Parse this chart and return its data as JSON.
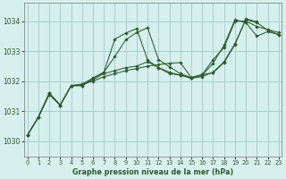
{
  "xlabel": "Graphe pression niveau de la mer (hPa)",
  "bg_color": "#d6f0ee",
  "grid_color": "#a0ccc8",
  "line_color": "#2d5a2d",
  "marker_color": "#2d5a2d",
  "ylim": [
    1029.5,
    1034.6
  ],
  "xlim": [
    -0.3,
    23.3
  ],
  "yticks": [
    1030,
    1031,
    1032,
    1033,
    1034
  ],
  "xticks": [
    0,
    1,
    2,
    3,
    4,
    5,
    6,
    7,
    8,
    9,
    10,
    11,
    12,
    13,
    14,
    15,
    16,
    17,
    18,
    19,
    20,
    21,
    22,
    23
  ],
  "series": [
    {
      "x": [
        0,
        1,
        2,
        3,
        4,
        5,
        6,
        7,
        8,
        9,
        10,
        11,
        12,
        13,
        14,
        15,
        16,
        17,
        18,
        19,
        20,
        21,
        22,
        23
      ],
      "y": [
        1030.2,
        1030.8,
        1031.55,
        1031.2,
        1031.85,
        1031.85,
        1032.1,
        1032.3,
        1033.4,
        1033.6,
        1033.75,
        1032.7,
        1032.45,
        1032.25,
        1032.2,
        1032.1,
        1032.2,
        1032.6,
        1033.2,
        1034.05,
        1033.95,
        1033.5,
        1033.65,
        1033.55
      ]
    },
    {
      "x": [
        0,
        1,
        2,
        3,
        4,
        5,
        6,
        7,
        8,
        9,
        10,
        11,
        12,
        13,
        14,
        15,
        16,
        17,
        18,
        19,
        20,
        21,
        22,
        23
      ],
      "y": [
        1030.2,
        1030.8,
        1031.6,
        1031.2,
        1031.85,
        1031.85,
        1032.05,
        1032.25,
        1032.35,
        1032.45,
        1032.5,
        1032.65,
        1032.45,
        1032.3,
        1032.2,
        1032.1,
        1032.15,
        1032.3,
        1032.65,
        1033.25,
        1034.05,
        1033.95,
        1033.7,
        1033.55
      ]
    },
    {
      "x": [
        0,
        1,
        2,
        3,
        4,
        5,
        6,
        7,
        8,
        9,
        10,
        11,
        12,
        13,
        14,
        15,
        16,
        17,
        18,
        19,
        20,
        21,
        22,
        23
      ],
      "y": [
        1030.2,
        1030.8,
        1031.6,
        1031.2,
        1031.85,
        1031.9,
        1032.0,
        1032.15,
        1032.25,
        1032.35,
        1032.42,
        1032.5,
        1032.55,
        1032.6,
        1032.62,
        1032.12,
        1032.22,
        1032.72,
        1033.12,
        1034.0,
        1034.0,
        1033.82,
        1033.72,
        1033.62
      ]
    },
    {
      "x": [
        0,
        1,
        2,
        3,
        4,
        5,
        6,
        7,
        8,
        9,
        10,
        11,
        12,
        13,
        14,
        15,
        16,
        17,
        18,
        19,
        20,
        21
      ],
      "y": [
        1030.2,
        1030.8,
        1031.6,
        1031.2,
        1031.85,
        1031.9,
        1032.1,
        1032.3,
        1032.82,
        1033.38,
        1033.62,
        1033.78,
        1032.72,
        1032.48,
        1032.25,
        1032.12,
        1032.22,
        1032.28,
        1032.62,
        1033.22,
        1034.08,
        1033.98
      ]
    }
  ]
}
